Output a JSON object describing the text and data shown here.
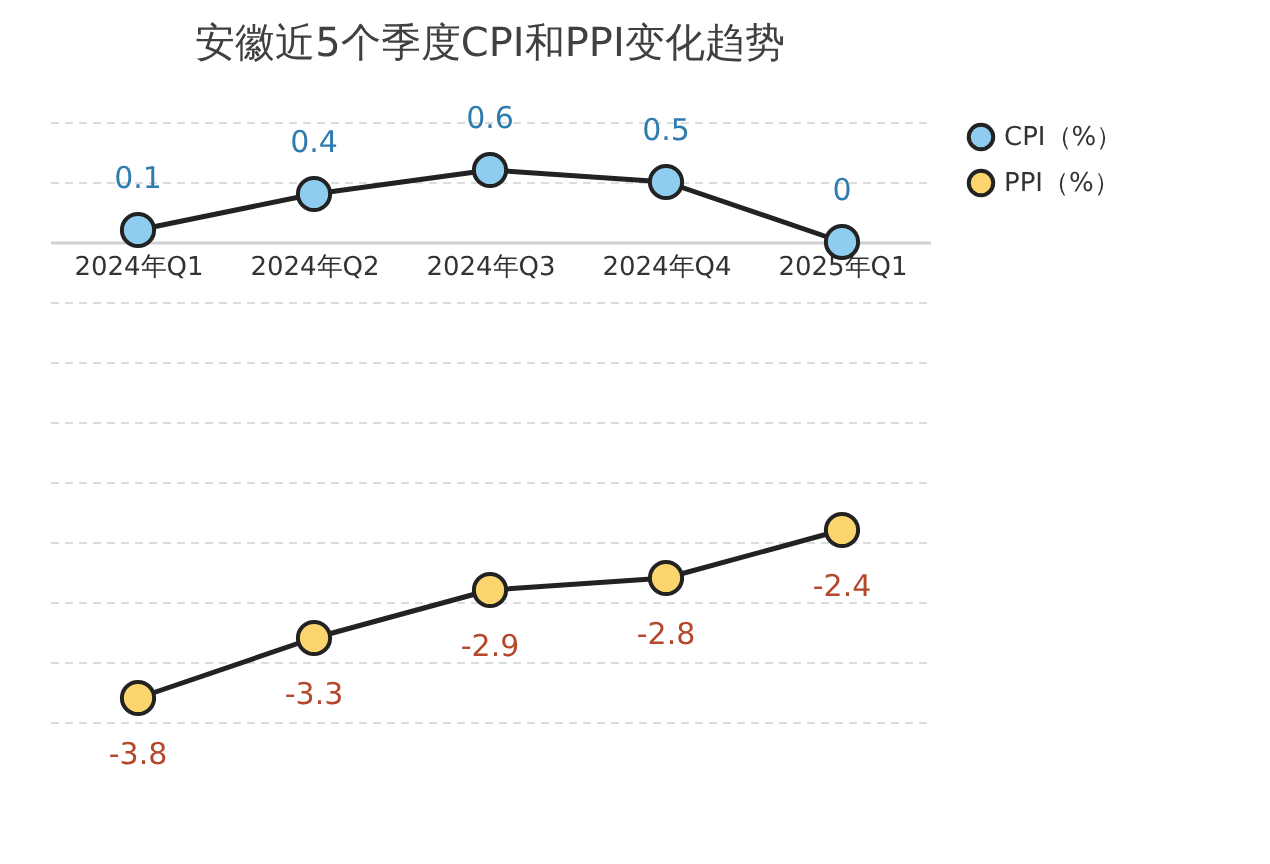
{
  "chart_data": {
    "type": "line",
    "title": "安徽近5个季度CPI和PPI变化趋势",
    "categories": [
      "2024年Q1",
      "2024年Q2",
      "2024年Q3",
      "2024年Q4",
      "2025年Q1"
    ],
    "series": [
      {
        "name": "CPI（%）",
        "color": "#8ecdf0",
        "values": [
          0.1,
          0.4,
          0.6,
          0.5,
          0
        ]
      },
      {
        "name": "PPI（%）",
        "color": "#fdd56e",
        "values": [
          -3.8,
          -3.3,
          -2.9,
          -2.8,
          -2.4
        ]
      }
    ],
    "tick_labels": "x",
    "grid": "y",
    "legend": "right",
    "marker": "circle",
    "line_style": "solid",
    "data_labels": true
  }
}
